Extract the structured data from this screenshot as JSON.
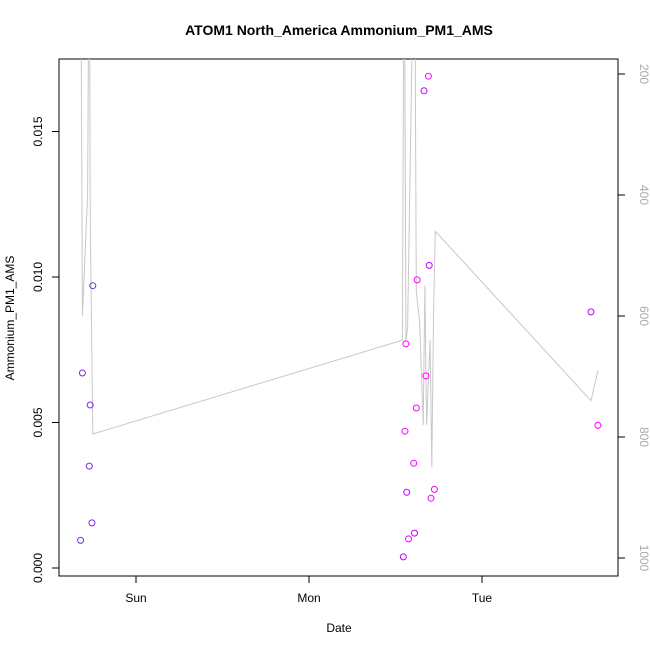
{
  "chart_data": {
    "type": "scatter",
    "title": "ATOM1 North_America Ammonium_PM1_AMS",
    "xlabel": "Date",
    "ylabel": "Ammonium_PM1_AMS",
    "x_ticks": [
      "Sun",
      "Mon",
      "Tue"
    ],
    "y_ticks": [
      "0.000",
      "0.005",
      "0.010",
      "0.015"
    ],
    "y_right_ticks": [
      "200",
      "400",
      "600",
      "800",
      "1000"
    ],
    "y_right_reversed": true,
    "ylim": [
      0,
      0.0175
    ],
    "grid": false,
    "points": [
      {
        "x": -0.32,
        "y": 0.00095
      },
      {
        "x": -0.31,
        "y": 0.0067
      },
      {
        "x": -0.27,
        "y": 0.0035
      },
      {
        "x": -0.265,
        "y": 0.0056
      },
      {
        "x": -0.255,
        "y": 0.00155
      },
      {
        "x": -0.25,
        "y": 0.0097
      },
      {
        "x": 1.545,
        "y": 0.00038
      },
      {
        "x": 1.555,
        "y": 0.0047
      },
      {
        "x": 1.56,
        "y": 0.0077
      },
      {
        "x": 1.565,
        "y": 0.0026
      },
      {
        "x": 1.575,
        "y": 0.001
      },
      {
        "x": 1.605,
        "y": 0.0036
      },
      {
        "x": 1.61,
        "y": 0.0012
      },
      {
        "x": 1.62,
        "y": 0.0055
      },
      {
        "x": 1.625,
        "y": 0.0099
      },
      {
        "x": 1.665,
        "y": 0.0164
      },
      {
        "x": 1.675,
        "y": 0.0066
      },
      {
        "x": 1.69,
        "y": 0.0169
      },
      {
        "x": 1.695,
        "y": 0.0104
      },
      {
        "x": 1.705,
        "y": 0.0024
      },
      {
        "x": 1.725,
        "y": 0.0027
      },
      {
        "x": 2.63,
        "y": 0.0088
      },
      {
        "x": 2.67,
        "y": 0.0049
      }
    ],
    "colors": {
      "points": [
        "#7b2be0",
        "#c000ff",
        "#ff00ff"
      ],
      "line": "#c8c8c8"
    },
    "pressure_series": {
      "x": [
        -0.33,
        -0.32,
        -0.31,
        -0.28,
        -0.27,
        -0.265,
        -0.25,
        1.54,
        1.55,
        1.56,
        1.57,
        1.61,
        1.62,
        1.64,
        1.66,
        1.67,
        1.68,
        1.7,
        1.71,
        1.72,
        1.73,
        2.63,
        2.67
      ],
      "y": [
        100,
        -100,
        600,
        400,
        -100,
        430,
        795,
        640,
        -100,
        640,
        620,
        -100,
        560,
        610,
        780,
        550,
        780,
        640,
        850,
        590,
        460,
        740,
        690
      ]
    }
  }
}
